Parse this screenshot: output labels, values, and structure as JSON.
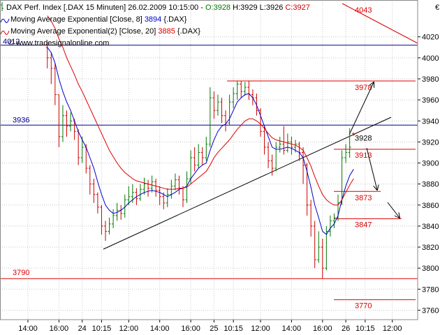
{
  "chart_data": {
    "type": "ohlc",
    "header": {
      "title": "DAX Perf. Index [.DAX  15 Minuten] 26.02.2009 10:15:00 -",
      "quote": [
        "O:3928",
        "H:3929",
        "L:3926",
        "C:3927"
      ]
    },
    "copyright": "© www.tradesignalonline.com",
    "currency": "€",
    "categories": [
      "14:00",
      null,
      null,
      null,
      null,
      null,
      null,
      null,
      "16:00",
      null,
      null,
      null,
      null,
      null,
      "24",
      null,
      null,
      null,
      null,
      "10:15",
      null,
      null,
      null,
      null,
      null,
      null,
      "12:00",
      null,
      null,
      null,
      null,
      null,
      null,
      null,
      "14:00",
      null,
      null,
      null,
      null,
      null,
      null,
      null,
      "16:00",
      null,
      null,
      null,
      null,
      null,
      "25",
      null,
      null,
      null,
      null,
      "10:15",
      null,
      null,
      null,
      null,
      null,
      null,
      "12:00",
      null,
      null,
      null,
      null,
      null,
      null,
      null,
      "14:00",
      null,
      null,
      null,
      null,
      null,
      null,
      null,
      "16:00",
      null,
      null,
      null,
      null,
      null,
      "26",
      null,
      null,
      null,
      null,
      "10:15",
      null,
      null,
      null,
      null,
      null,
      null,
      "12:00",
      null,
      null,
      null,
      null,
      null,
      null
    ],
    "open": [
      null,
      null,
      null,
      null,
      null,
      4010,
      4000,
      3990,
      3965,
      3925,
      3945,
      3935,
      3940,
      3930,
      3905,
      3915,
      3895,
      3880,
      3870,
      3858,
      3840,
      3835,
      3842,
      3850,
      3855,
      3852,
      3865,
      3868,
      3872,
      3866,
      3875,
      3880,
      3876,
      3882,
      3874,
      3868,
      3862,
      3870,
      3878,
      3884,
      3876,
      3865,
      3885,
      3905,
      3898,
      3910,
      3905,
      3918,
      3962,
      3950,
      3958,
      3945,
      3938,
      3958,
      3966,
      3975,
      3968,
      3972,
      3965,
      3962,
      3950,
      3930,
      3915,
      3902,
      3895,
      3915,
      3918,
      3912,
      3920,
      3915,
      3918,
      3910,
      3898,
      3860,
      3840,
      3808,
      3820,
      3800,
      3835,
      3845,
      3848,
      3862,
      3905,
      3910,
      3928,
      null,
      null,
      null,
      null,
      null,
      null,
      null,
      null,
      null,
      null,
      null,
      null,
      null,
      null,
      null,
      null
    ],
    "high": [
      null,
      null,
      null,
      null,
      null,
      4015,
      4005,
      3995,
      3965,
      3955,
      3950,
      3948,
      3942,
      3932,
      3925,
      3918,
      3898,
      3885,
      3872,
      3860,
      3845,
      3848,
      3856,
      3862,
      3860,
      3870,
      3878,
      3880,
      3876,
      3880,
      3886,
      3884,
      3888,
      3885,
      3878,
      3872,
      3876,
      3884,
      3890,
      3888,
      3878,
      3892,
      3912,
      3915,
      3918,
      3915,
      3925,
      3972,
      3968,
      3965,
      3962,
      3950,
      3965,
      3972,
      3978,
      3978,
      3977,
      3978,
      3970,
      3966,
      3952,
      3935,
      3920,
      3908,
      3920,
      3925,
      3935,
      3928,
      3925,
      3922,
      3920,
      3915,
      3900,
      3865,
      3845,
      3835,
      3828,
      3840,
      3850,
      3852,
      3870,
      3912,
      3918,
      3933,
      3929,
      null,
      null,
      null,
      null,
      null,
      null,
      null,
      null,
      null,
      null,
      null,
      null,
      null,
      null,
      null,
      null
    ],
    "low": [
      null,
      null,
      null,
      null,
      null,
      3990,
      3975,
      3955,
      3915,
      3920,
      3925,
      3930,
      3922,
      3898,
      3900,
      3890,
      3870,
      3862,
      3852,
      3832,
      3826,
      3832,
      3838,
      3845,
      3846,
      3848,
      3860,
      3862,
      3860,
      3864,
      3870,
      3868,
      3872,
      3868,
      3860,
      3856,
      3858,
      3866,
      3874,
      3870,
      3858,
      3862,
      3880,
      3892,
      3895,
      3898,
      3902,
      3915,
      3942,
      3945,
      3938,
      3930,
      3936,
      3952,
      3960,
      3962,
      3964,
      3960,
      3955,
      3945,
      3925,
      3908,
      3895,
      3888,
      3892,
      3910,
      3908,
      3910,
      3908,
      3910,
      3902,
      3880,
      3850,
      3830,
      3800,
      3805,
      3790,
      3798,
      3830,
      3838,
      3845,
      3860,
      3900,
      3905,
      3926,
      null,
      null,
      null,
      null,
      null,
      null,
      null,
      null,
      null,
      null,
      null,
      null,
      null,
      null,
      null,
      null
    ],
    "close": [
      null,
      null,
      null,
      null,
      null,
      4000,
      3990,
      3965,
      3925,
      3945,
      3935,
      3940,
      3930,
      3905,
      3915,
      3895,
      3880,
      3870,
      3858,
      3840,
      3835,
      3842,
      3850,
      3855,
      3852,
      3865,
      3868,
      3872,
      3866,
      3875,
      3880,
      3876,
      3882,
      3874,
      3868,
      3862,
      3870,
      3878,
      3884,
      3876,
      3865,
      3885,
      3905,
      3898,
      3910,
      3905,
      3918,
      3962,
      3950,
      3958,
      3945,
      3938,
      3958,
      3966,
      3975,
      3968,
      3972,
      3965,
      3962,
      3950,
      3930,
      3915,
      3902,
      3895,
      3915,
      3918,
      3912,
      3920,
      3915,
      3918,
      3910,
      3898,
      3860,
      3840,
      3808,
      3820,
      3800,
      3835,
      3845,
      3848,
      3862,
      3905,
      3910,
      3915,
      3927,
      null,
      null,
      null,
      null,
      null,
      null,
      null,
      null,
      null,
      null,
      null,
      null,
      null,
      null,
      null,
      null
    ],
    "up_color": "#007a00",
    "down_color": "#cc0000",
    "series": [
      {
        "name": "Moving Average Exponential [Close, 8]",
        "last_value": 3894,
        "suffix": "{.DAX}",
        "color": "#0000cc",
        "values": [
          null,
          null,
          null,
          null,
          null,
          4010,
          4005,
          3995,
          3980,
          3968,
          3958,
          3950,
          3940,
          3930,
          3922,
          3915,
          3905,
          3895,
          3882,
          3870,
          3860,
          3855,
          3852,
          3853,
          3855,
          3858,
          3862,
          3865,
          3868,
          3870,
          3872,
          3873,
          3874,
          3873,
          3872,
          3870,
          3868,
          3870,
          3872,
          3875,
          3876,
          3878,
          3885,
          3890,
          3895,
          3898,
          3900,
          3912,
          3922,
          3930,
          3935,
          3937,
          3942,
          3950,
          3958,
          3962,
          3965,
          3966,
          3962,
          3955,
          3945,
          3935,
          3925,
          3915,
          3913,
          3913,
          3914,
          3915,
          3914,
          3912,
          3910,
          3905,
          3892,
          3877,
          3860,
          3848,
          3835,
          3832,
          3838,
          3842,
          3850,
          3865,
          3878,
          3888,
          3894,
          null,
          null,
          null,
          null,
          null,
          null,
          null,
          null,
          null,
          null,
          null,
          null,
          null,
          null,
          null,
          null
        ]
      },
      {
        "name": "Moving Average Exponential(2) [Close, 20]",
        "last_value": 3885,
        "suffix": "{.DAX}",
        "color": "#dd0000",
        "values": [
          null,
          null,
          null,
          null,
          null,
          4040,
          4035,
          4028,
          4018,
          4010,
          4000,
          3992,
          3984,
          3975,
          3968,
          3960,
          3952,
          3944,
          3936,
          3928,
          3920,
          3912,
          3906,
          3900,
          3895,
          3891,
          3888,
          3885,
          3883,
          3882,
          3881,
          3880,
          3879,
          3878,
          3877,
          3876,
          3875,
          3875,
          3875,
          3876,
          3876,
          3877,
          3880,
          3883,
          3886,
          3889,
          3892,
          3898,
          3905,
          3910,
          3914,
          3918,
          3922,
          3927,
          3932,
          3936,
          3940,
          3942,
          3942,
          3940,
          3937,
          3933,
          3928,
          3924,
          3922,
          3921,
          3920,
          3919,
          3918,
          3917,
          3915,
          3912,
          3905,
          3897,
          3887,
          3878,
          3870,
          3865,
          3862,
          3860,
          3860,
          3865,
          3872,
          3879,
          3885,
          null,
          null,
          null,
          null,
          null,
          null,
          null,
          null,
          null,
          null,
          null,
          null,
          null,
          null,
          null,
          null
        ]
      }
    ],
    "levels": [
      {
        "value": 4012,
        "color": "#00008b"
      },
      {
        "value": 3936,
        "color": "#00008b"
      },
      {
        "value": 3790,
        "color": "#dd0000"
      },
      {
        "value": 3978,
        "color": "#dd0000"
      },
      {
        "value": 3913,
        "color": "#dd0000"
      },
      {
        "value": 3873,
        "color": "#dd0000"
      },
      {
        "value": 3847,
        "color": "#dd0000"
      },
      {
        "value": 3770,
        "color": "#dd0000"
      }
    ],
    "annotations": [
      {
        "value": 4043,
        "color": "#dd0000"
      },
      {
        "value": 3928,
        "color": "#000000"
      }
    ],
    "ylim": [
      3751,
      4055
    ],
    "yticks": [
      3760,
      3780,
      3800,
      3820,
      3840,
      3860,
      3880,
      3900,
      3920,
      3940,
      3960,
      3980,
      4000,
      4020
    ],
    "grid": true
  }
}
